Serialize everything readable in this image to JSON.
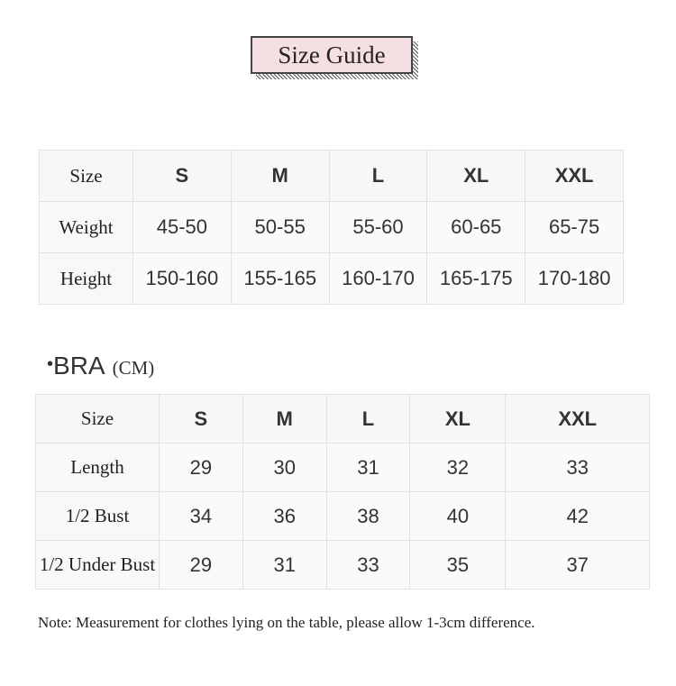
{
  "title": "Size Guide",
  "size_table": {
    "rows": [
      [
        "Size",
        "S",
        "M",
        "L",
        "XL",
        "XXL"
      ],
      [
        "Weight",
        "45-50",
        "50-55",
        "55-60",
        "60-65",
        "65-75"
      ],
      [
        "Height",
        "150-160",
        "155-165",
        "160-170",
        "165-175",
        "170-180"
      ]
    ]
  },
  "bra_section": {
    "title": "BRA",
    "unit": "(CM)",
    "table": {
      "rows": [
        [
          "Size",
          "S",
          "M",
          "L",
          "XL",
          "XXL"
        ],
        [
          "Length",
          "29",
          "30",
          "31",
          "32",
          "33"
        ],
        [
          "1/2 Bust",
          "34",
          "36",
          "38",
          "40",
          "42"
        ],
        [
          "1/2 Under Bust",
          "29",
          "31",
          "33",
          "35",
          "37"
        ]
      ]
    }
  },
  "note": "Note: Measurement for clothes lying on the table, please allow 1-3cm difference."
}
